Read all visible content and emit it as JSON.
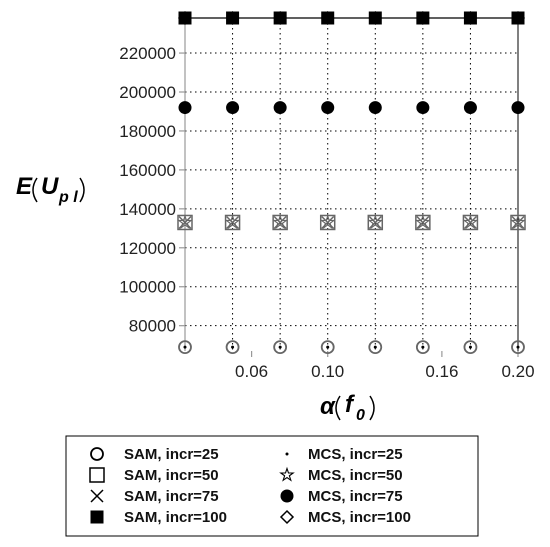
{
  "chart_data": {
    "type": "scatter",
    "x": [
      0.025,
      0.05,
      0.075,
      0.1,
      0.125,
      0.15,
      0.175,
      0.2
    ],
    "xlim": [
      0.025,
      0.2
    ],
    "ylim": [
      67000,
      238000
    ],
    "xticks": [
      0.06,
      0.1,
      0.16,
      0.2
    ],
    "xtick_labels": [
      "0.06",
      "0.10",
      "0.16",
      "0.20"
    ],
    "yticks": [
      80000,
      100000,
      120000,
      140000,
      160000,
      180000,
      200000,
      220000
    ],
    "ytick_labels": [
      "80000",
      "100000",
      "120000",
      "140000",
      "160000",
      "180000",
      "200000",
      "220000"
    ],
    "grid": true,
    "legend_position": "bottom",
    "series": [
      {
        "name": "SAM, incr=25",
        "marker": "circle-open",
        "values": [
          69000,
          69000,
          69000,
          69000,
          69000,
          69000,
          69000,
          69000
        ]
      },
      {
        "name": "MCS, incr=25",
        "marker": "dot",
        "values": [
          69000,
          69000,
          69000,
          69000,
          69000,
          69000,
          69000,
          69000
        ]
      },
      {
        "name": "SAM, incr=50",
        "marker": "square-open",
        "values": [
          133000,
          133000,
          133000,
          133000,
          133000,
          133000,
          133000,
          133000
        ]
      },
      {
        "name": "MCS, incr=50",
        "marker": "star",
        "values": [
          133000,
          133000,
          133000,
          133000,
          133000,
          133000,
          133000,
          133000
        ]
      },
      {
        "name": "SAM, incr=75",
        "marker": "cross",
        "values": [
          133000,
          133000,
          133000,
          133000,
          133000,
          133000,
          133000,
          133000
        ]
      },
      {
        "name": "MCS, incr=75",
        "marker": "circle-filled",
        "values": [
          192000,
          192000,
          192000,
          192000,
          192000,
          192000,
          192000,
          192000
        ]
      },
      {
        "name": "SAM, incr=100",
        "marker": "square-filled",
        "values": [
          238000,
          238000,
          238000,
          238000,
          238000,
          238000,
          238000,
          238000
        ]
      },
      {
        "name": "MCS, incr=100",
        "marker": "diamond-open",
        "values": [
          238000,
          238000,
          238000,
          238000,
          238000,
          238000,
          238000,
          238000
        ]
      }
    ],
    "legend": [
      {
        "left": {
          "label": "SAM, incr=25",
          "marker": "circle-open"
        },
        "right": {
          "label": "MCS, incr=25",
          "marker": "dot"
        }
      },
      {
        "left": {
          "label": "SAM, incr=50",
          "marker": "square-open"
        },
        "right": {
          "label": "MCS, incr=50",
          "marker": "star"
        }
      },
      {
        "left": {
          "label": "SAM, incr=75",
          "marker": "cross"
        },
        "right": {
          "label": "MCS, incr=75",
          "marker": "circle-filled"
        }
      },
      {
        "left": {
          "label": "SAM, incr=100",
          "marker": "square-filled"
        },
        "right": {
          "label": "MCS, incr=100",
          "marker": "diamond-open"
        }
      }
    ],
    "colors": {
      "marker": "#000000",
      "grey_marker": "#666666",
      "grid": "#000000",
      "axis": "#999999"
    }
  }
}
